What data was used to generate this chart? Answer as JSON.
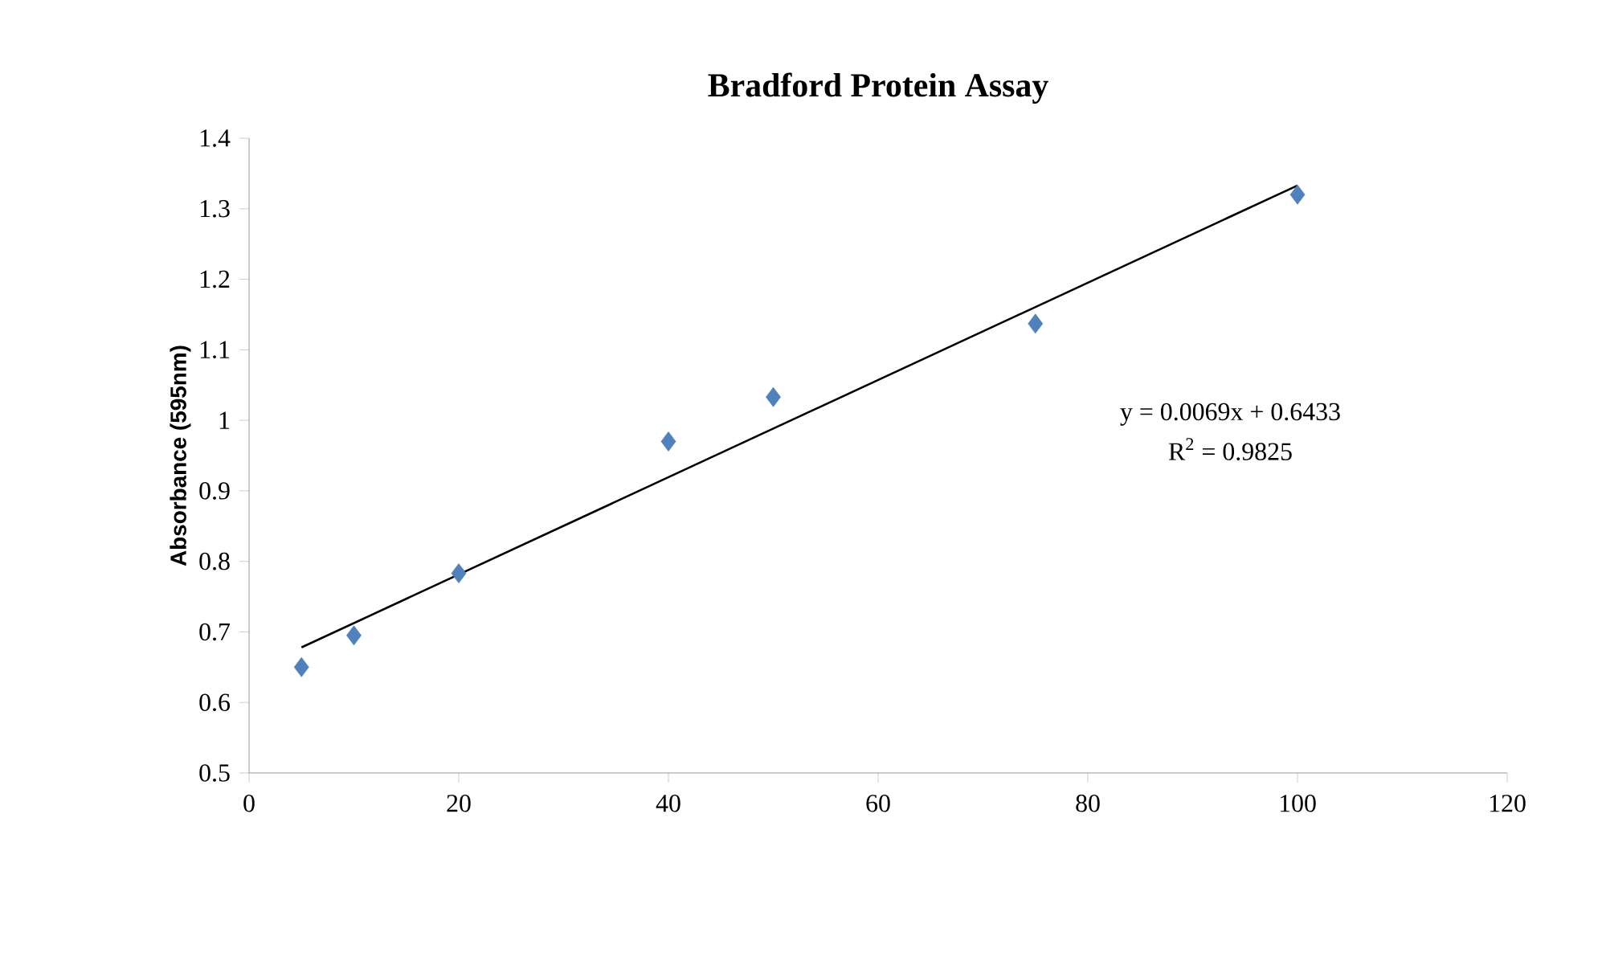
{
  "chart_data": {
    "type": "scatter",
    "title": "Bradford Protein Assay",
    "ylabel": "Absorbance (595nm)",
    "series": [
      {
        "color": "#4f81bd",
        "marker": "diamond",
        "x": [
          5,
          10,
          20,
          40,
          50,
          75,
          100
        ],
        "values": [
          0.65,
          0.695,
          0.783,
          0.97,
          1.033,
          1.137,
          1.32
        ]
      },
      {
        "type": "line",
        "color": "#000000",
        "marker": "none",
        "x": [
          5,
          100
        ],
        "values": [
          0.678,
          1.333
        ]
      }
    ],
    "xlim": [
      0,
      120
    ],
    "xticks": [
      0,
      20,
      40,
      60,
      80,
      100,
      120
    ],
    "ylim": [
      0.5,
      1.4
    ],
    "yticks": [
      0.5,
      0.6,
      0.7,
      0.8,
      0.9,
      1,
      1.1,
      1.2,
      1.3,
      1.4
    ],
    "annotations": [
      "y = 0.0069x + 0.6433",
      "R$^{2}$ = 0.9825"
    ],
    "grid": false
  }
}
